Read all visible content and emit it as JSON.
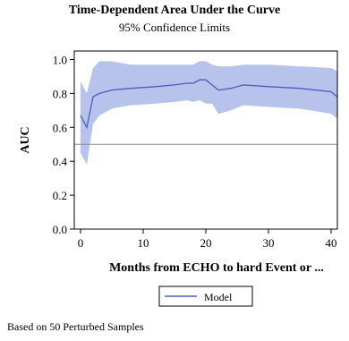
{
  "chart_data": {
    "type": "line",
    "title": "Time-Dependent Area Under the Curve",
    "subtitle": "95% Confidence Limits",
    "xlabel": "Months from ECHO to hard Event or ...",
    "ylabel": "AUC",
    "xlim": [
      -1,
      41
    ],
    "ylim": [
      0,
      1.05
    ],
    "xticks": [
      0,
      10,
      20,
      30,
      40
    ],
    "yticks": [
      0.0,
      0.2,
      0.4,
      0.6,
      0.8,
      1.0
    ],
    "reference_line": 0.5,
    "band_color": "#b7c3ea",
    "line_color": "#4a5bc4",
    "series": [
      {
        "name": "Model",
        "x": [
          0,
          1,
          2,
          3,
          5,
          8,
          12,
          15,
          17,
          18,
          19,
          20,
          21,
          22,
          24,
          26,
          30,
          35,
          40,
          41
        ],
        "y": [
          0.67,
          0.6,
          0.78,
          0.8,
          0.82,
          0.83,
          0.84,
          0.85,
          0.86,
          0.86,
          0.88,
          0.88,
          0.85,
          0.82,
          0.83,
          0.85,
          0.84,
          0.83,
          0.81,
          0.78
        ],
        "lower": [
          0.45,
          0.38,
          0.62,
          0.67,
          0.71,
          0.73,
          0.74,
          0.75,
          0.76,
          0.75,
          0.76,
          0.74,
          0.74,
          0.68,
          0.7,
          0.73,
          0.72,
          0.71,
          0.68,
          0.65
        ],
        "upper": [
          0.87,
          0.8,
          0.95,
          0.99,
          0.99,
          0.97,
          0.97,
          0.97,
          0.97,
          0.97,
          0.99,
          0.99,
          0.97,
          0.96,
          0.96,
          0.97,
          0.97,
          0.96,
          0.95,
          0.93
        ]
      }
    ],
    "legend": {
      "placement": "bottom-center",
      "entries": [
        "Model"
      ]
    }
  },
  "footnote": "Based on 50 Perturbed Samples"
}
